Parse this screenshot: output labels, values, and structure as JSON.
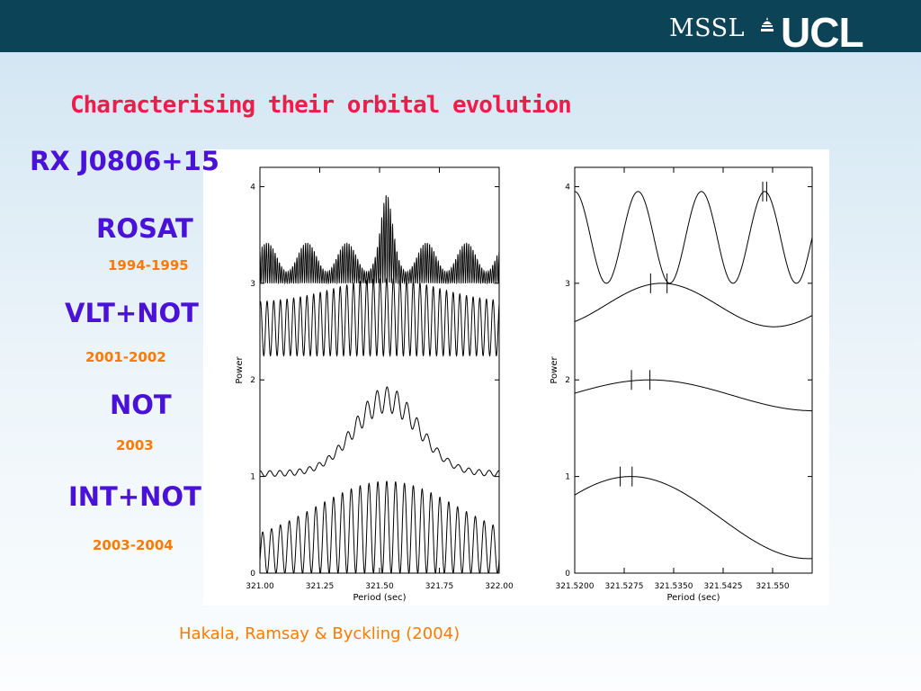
{
  "header": {
    "mssl": "MSSL",
    "ucl": "UCL"
  },
  "title": "Characterising their orbital evolution",
  "object_name": "RX J0806+15",
  "epochs": [
    {
      "instrument": "ROSAT",
      "years": "1994-1995"
    },
    {
      "instrument": "VLT+NOT",
      "years": "2001-2002"
    },
    {
      "instrument": "NOT",
      "years": "2003"
    },
    {
      "instrument": "INT+NOT",
      "years": "2003-2004"
    }
  ],
  "citation": "Hakala, Ramsay & Byckling (2004)",
  "chart_data": [
    {
      "type": "line",
      "xlabel": "Period (sec)",
      "ylabel": "Power",
      "xlim": [
        321.0,
        322.0
      ],
      "ylim": [
        0,
        4.2
      ],
      "xticks": [
        "321.00",
        "321.25",
        "321.50",
        "321.75",
        "322.00"
      ],
      "xtick_values": [
        321.0,
        321.25,
        321.5,
        321.75,
        322.0
      ],
      "yticks": [
        "0",
        "1",
        "2",
        "3",
        "4"
      ],
      "series": [
        {
          "epoch": "ROSAT",
          "offset": 3.0,
          "ranges": [
            3.0,
            4.0
          ],
          "peak_period": 321.53
        },
        {
          "epoch": "VLT+NOT",
          "offset": 2.15,
          "ranges": [
            2.15,
            3.0
          ],
          "peak_period": 321.53
        },
        {
          "epoch": "NOT",
          "offset": 1.0,
          "ranges": [
            1.0,
            2.0
          ],
          "peak_period": 321.53
        },
        {
          "epoch": "INT+NOT",
          "offset": 0.0,
          "ranges": [
            0.0,
            1.0
          ],
          "peak_period": 321.53
        }
      ]
    },
    {
      "type": "line",
      "xlabel": "Period (sec)",
      "ylabel": "Power",
      "xlim": [
        321.52,
        321.556
      ],
      "ylim": [
        0,
        4.2
      ],
      "xticks": [
        "321.5200",
        "321.5275",
        "321.5350",
        "321.5425",
        "321.550"
      ],
      "xtick_values": [
        321.52,
        321.5275,
        321.535,
        321.5425,
        321.55
      ],
      "yticks": [
        "0",
        "1",
        "2",
        "3",
        "4"
      ],
      "series": [
        {
          "epoch": "ROSAT",
          "range": [
            3.0,
            3.95
          ],
          "peak_period": 321.5488
        },
        {
          "epoch": "VLT+NOT",
          "range": [
            2.55,
            3.0
          ],
          "peak_period": 321.5332
        },
        {
          "epoch": "NOT",
          "range": [
            1.68,
            2.0
          ],
          "peak_period": 321.5314
        },
        {
          "epoch": "INT+NOT",
          "range": [
            0.15,
            1.0
          ],
          "peak_period": 321.5285
        }
      ],
      "error_marks": [
        {
          "epoch": "ROSAT",
          "periods": [
            321.5485,
            321.5491
          ]
        },
        {
          "epoch": "VLT+NOT",
          "periods": [
            321.5315,
            321.534
          ]
        },
        {
          "epoch": "NOT",
          "periods": [
            321.5286,
            321.5314
          ]
        },
        {
          "epoch": "INT+NOT",
          "periods": [
            321.5269,
            321.5287
          ]
        }
      ]
    }
  ]
}
